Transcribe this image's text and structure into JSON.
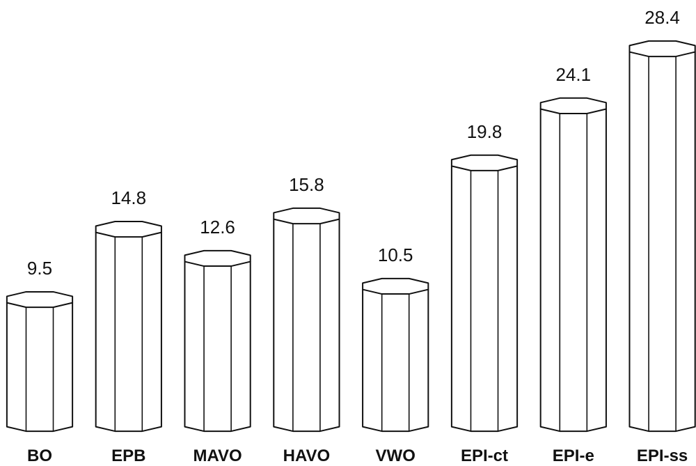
{
  "chart_data": {
    "type": "bar",
    "categories": [
      "BO",
      "EPB",
      "MAVO",
      "HAVO",
      "VWO",
      "EPI-ct",
      "EPI-e",
      "EPI-ss"
    ],
    "values": [
      9.5,
      14.8,
      12.6,
      15.8,
      10.5,
      19.8,
      24.1,
      28.4
    ]
  }
}
